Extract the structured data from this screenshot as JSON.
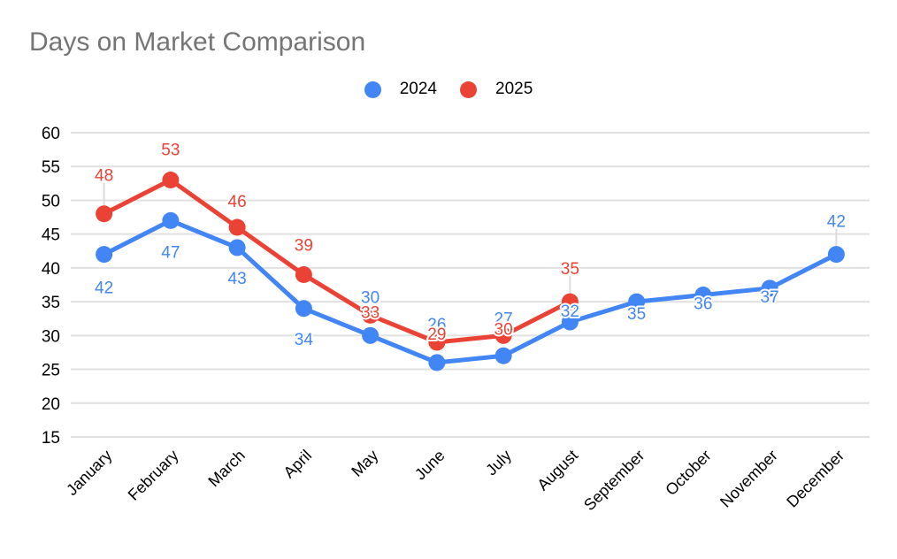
{
  "title": "Days on Market Comparison",
  "legend": [
    {
      "label": "2024",
      "color": "#4285F4"
    },
    {
      "label": "2025",
      "color": "#EA4335"
    }
  ],
  "colors": {
    "series_2024": "#4285F4",
    "series_2025": "#EA4335",
    "gridline": "#E0E0E0",
    "leader_line": "#DADCE0",
    "title_text": "#757575",
    "axis_text": "#000000",
    "label_halo": "#FFFFFF",
    "background": "#FFFFFF"
  },
  "chart_data": {
    "type": "line",
    "title": "Days on Market Comparison",
    "xlabel": "",
    "ylabel": "",
    "categories": [
      "January",
      "February",
      "March",
      "April",
      "May",
      "June",
      "July",
      "August",
      "September",
      "October",
      "November",
      "December"
    ],
    "series": [
      {
        "name": "2024",
        "color": "#4285F4",
        "values": [
          42,
          47,
          43,
          34,
          30,
          26,
          27,
          32,
          35,
          36,
          37,
          42
        ]
      },
      {
        "name": "2025",
        "color": "#EA4335",
        "values": [
          48,
          53,
          46,
          39,
          33,
          29,
          30,
          35,
          null,
          null,
          null,
          null
        ]
      }
    ],
    "ylim": [
      15,
      60
    ],
    "ytick_step": 5,
    "yticks": [
      15,
      20,
      25,
      30,
      35,
      40,
      45,
      50,
      55,
      60
    ],
    "grid": "horizontal",
    "legend_position": "top-center",
    "point_labels": true,
    "x_label_rotation": -45,
    "label_offsets": {
      "2024": [
        37,
        35,
        34,
        34,
        -44,
        -44,
        -43,
        -13,
        13,
        9,
        9,
        -38
      ],
      "2025": [
        -44,
        -35,
        -30,
        -34,
        -4,
        -10,
        -8,
        -38,
        null,
        null,
        null,
        null
      ]
    },
    "leader_lines": {
      "2024": [
        false,
        false,
        false,
        false,
        false,
        false,
        false,
        false,
        false,
        false,
        false,
        true
      ],
      "2025": [
        true,
        false,
        false,
        false,
        false,
        false,
        false,
        true,
        null,
        null,
        null,
        null
      ]
    }
  }
}
